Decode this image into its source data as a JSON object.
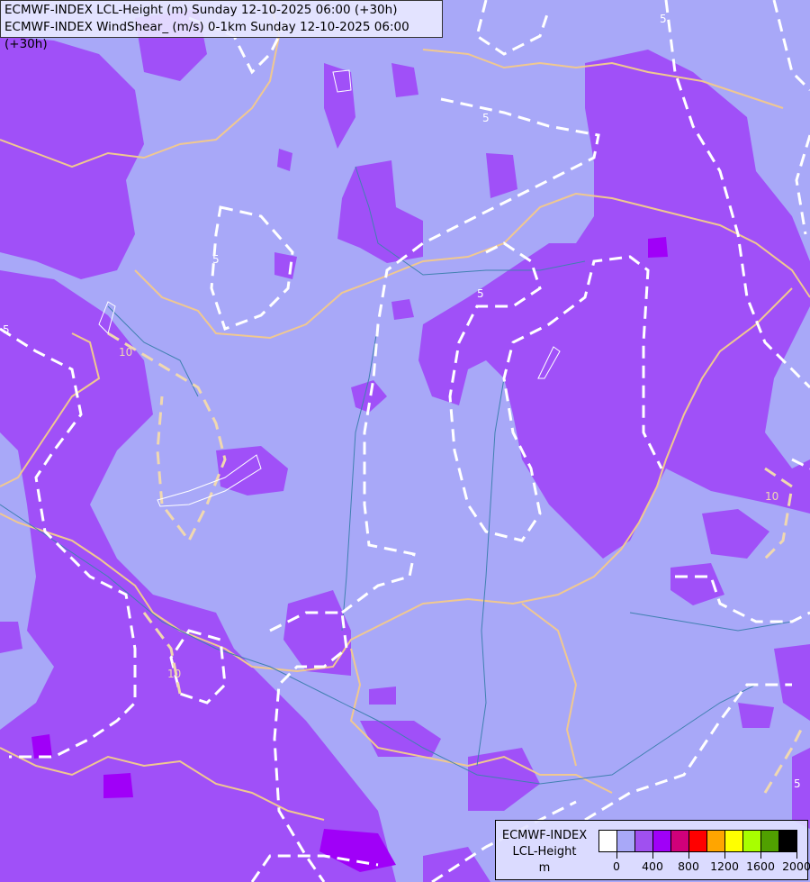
{
  "header": {
    "line1": "ECMWF-INDEX LCL-Height (m) Sunday 12-10-2025 06:00 (+30h)",
    "line2": "ECMWF-INDEX WindShear_ (m/s) 0-1km Sunday 12-10-2025 06:00 (+30h)"
  },
  "map": {
    "background_color": "#a8a8f8",
    "fill_color_200_400": "#a050f8",
    "fill_color_400_600": "#a000f8",
    "border_color": "#f0c890",
    "river_color": "#4080b0",
    "contour_color": "#ffffff",
    "contour_labels": [
      "5",
      "5",
      "5",
      "5",
      "5",
      "10",
      "10",
      "10",
      "5"
    ]
  },
  "legend": {
    "title1": "ECMWF-INDEX",
    "title2": "LCL-Height",
    "unit": "m",
    "colors": [
      "#ffffff",
      "#a8a8f8",
      "#a050f0",
      "#a000f8",
      "#d0007a",
      "#ff0000",
      "#ffa500",
      "#ffff00",
      "#a8ff00",
      "#50a000",
      "#000000"
    ],
    "tick_labels": [
      "0",
      "400",
      "800",
      "1200",
      "1600",
      "2000"
    ]
  }
}
